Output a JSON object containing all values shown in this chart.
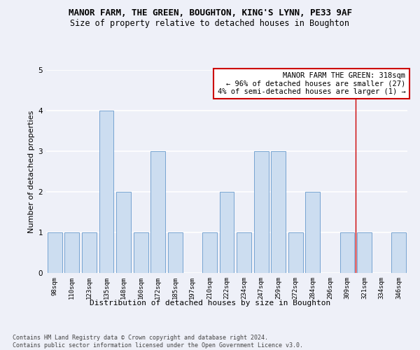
{
  "title": "MANOR FARM, THE GREEN, BOUGHTON, KING'S LYNN, PE33 9AF",
  "subtitle": "Size of property relative to detached houses in Boughton",
  "xlabel": "Distribution of detached houses by size in Boughton",
  "ylabel": "Number of detached properties",
  "categories": [
    "98sqm",
    "110sqm",
    "123sqm",
    "135sqm",
    "148sqm",
    "160sqm",
    "172sqm",
    "185sqm",
    "197sqm",
    "210sqm",
    "222sqm",
    "234sqm",
    "247sqm",
    "259sqm",
    "272sqm",
    "284sqm",
    "296sqm",
    "309sqm",
    "321sqm",
    "334sqm",
    "346sqm"
  ],
  "values": [
    1,
    1,
    1,
    4,
    2,
    1,
    3,
    1,
    0,
    1,
    2,
    1,
    3,
    3,
    1,
    2,
    0,
    1,
    1,
    0,
    1
  ],
  "bar_color": "#ccddf0",
  "bar_edge_color": "#6699cc",
  "background_color": "#eef0f8",
  "grid_color": "#ffffff",
  "red_line_index": 17.5,
  "annotation_text": "MANOR FARM THE GREEN: 318sqm\n← 96% of detached houses are smaller (27)\n4% of semi-detached houses are larger (1) →",
  "annotation_box_color": "#ffffff",
  "annotation_box_edge_color": "#cc0000",
  "ylim": [
    0,
    5
  ],
  "yticks": [
    0,
    1,
    2,
    3,
    4,
    5
  ],
  "footer": "Contains HM Land Registry data © Crown copyright and database right 2024.\nContains public sector information licensed under the Open Government Licence v3.0.",
  "title_fontsize": 9,
  "subtitle_fontsize": 8.5,
  "xlabel_fontsize": 8,
  "ylabel_fontsize": 8,
  "tick_fontsize": 6.5,
  "annotation_fontsize": 7.5,
  "footer_fontsize": 6
}
